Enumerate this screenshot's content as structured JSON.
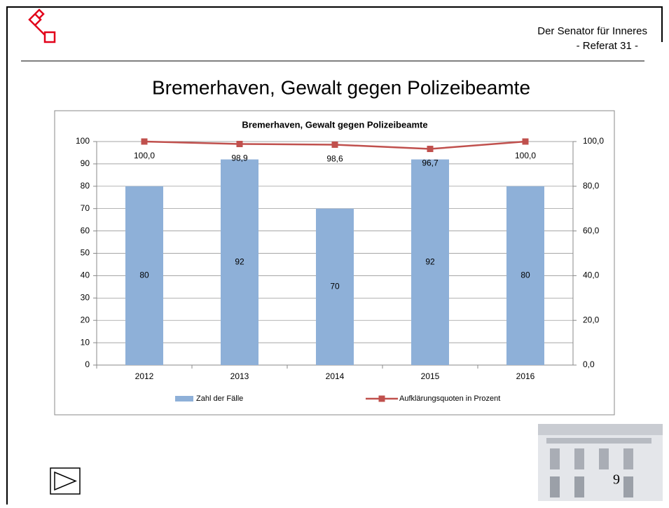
{
  "header": {
    "org": "Der Senator für Inneres",
    "dept": "- Referat 31 -"
  },
  "slide_title": "Bremerhaven, Gewalt gegen Polizeibeamte",
  "page_number": "9",
  "chart_data": {
    "type": "bar-line",
    "title": "Bremerhaven, Gewalt gegen Polizeibeamte",
    "categories": [
      "2012",
      "2013",
      "2014",
      "2015",
      "2016"
    ],
    "series": [
      {
        "name": "Zahl der Fälle",
        "type": "bar",
        "color": "#8eb0d8",
        "values": [
          80,
          92,
          70,
          92,
          80
        ]
      },
      {
        "name": "Aufklärungsquoten in Prozent",
        "type": "line",
        "axis": "y2",
        "color": "#c0504d",
        "values": [
          100,
          98.9,
          98.6,
          96.7,
          100
        ],
        "value_labels": [
          "100,0",
          "98,9",
          "98,6",
          "96,7",
          "100,0"
        ]
      }
    ],
    "ylim": [
      0,
      100
    ],
    "yticks": [
      0,
      10,
      20,
      30,
      40,
      50,
      60,
      70,
      80,
      90,
      100
    ],
    "y2lim": [
      0,
      100
    ],
    "y2ticks": [
      {
        "value": 0,
        "label": "0,0"
      },
      {
        "value": 20,
        "label": "20,0"
      },
      {
        "value": 40,
        "label": "40,0"
      },
      {
        "value": 60,
        "label": "60,0"
      },
      {
        "value": 80,
        "label": "80,0"
      },
      {
        "value": 100,
        "label": "100,0"
      }
    ],
    "grid": true,
    "legend": "bottom"
  }
}
